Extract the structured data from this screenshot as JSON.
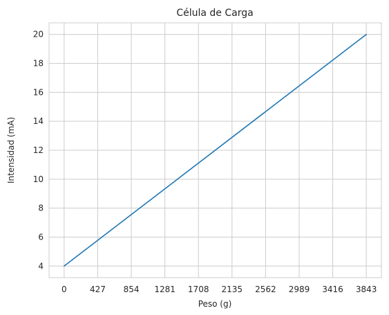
{
  "chart_data": {
    "type": "line",
    "title": "Célula de Carga",
    "xlabel": "Peso (g)",
    "ylabel": "Intensidad (mA)",
    "xlim": [
      -192,
      4035
    ],
    "ylim": [
      3.2,
      20.8
    ],
    "xticks": [
      0,
      427,
      854,
      1281,
      1708,
      2135,
      2562,
      2989,
      3416,
      3843
    ],
    "yticks": [
      4,
      6,
      8,
      10,
      12,
      14,
      16,
      18,
      20
    ],
    "grid": true,
    "series": [
      {
        "x": [
          0,
          3843
        ],
        "y": [
          4,
          20
        ],
        "color": "#1f77b4"
      }
    ],
    "style": {
      "grid_color": "#cccccc",
      "text_color": "#262626"
    }
  }
}
